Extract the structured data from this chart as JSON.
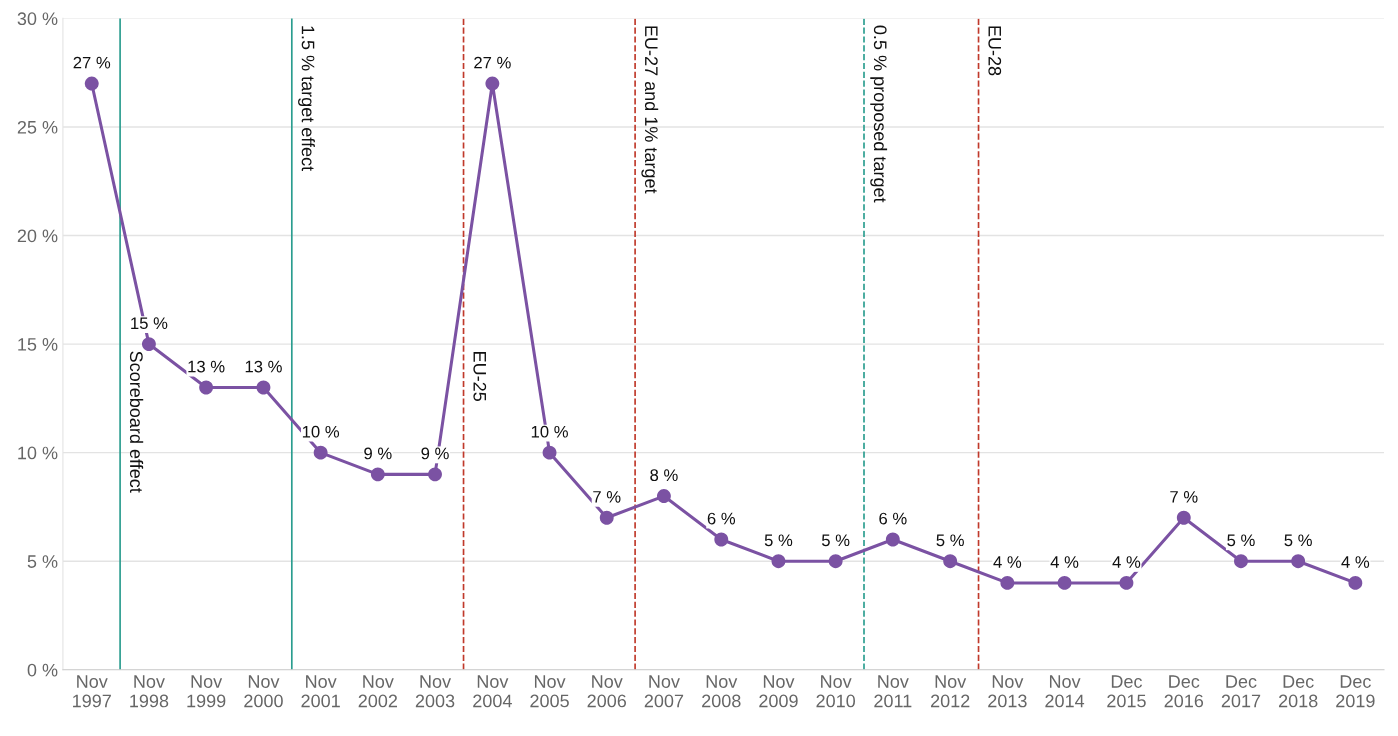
{
  "chart_data": {
    "type": "line",
    "x": [
      "1997-11",
      "1998-11",
      "1999-11",
      "2000-11",
      "2001-11",
      "2002-11",
      "2003-11",
      "2004-11",
      "2005-11",
      "2006-11",
      "2007-11",
      "2008-11",
      "2009-11",
      "2010-11",
      "2011-11",
      "2012-11",
      "2013-11",
      "2014-11",
      "2015-12",
      "2016-12",
      "2017-12",
      "2018-12",
      "2019-12"
    ],
    "xlim": [
      "1997-05",
      "2020-06"
    ],
    "xticks": [
      {
        "value": "1997-11",
        "label": "Nov\n1997"
      },
      {
        "value": "1998-11",
        "label": "Nov\n1998"
      },
      {
        "value": "1999-11",
        "label": "Nov\n1999"
      },
      {
        "value": "2000-11",
        "label": "Nov\n2000"
      },
      {
        "value": "2001-11",
        "label": "Nov\n2001"
      },
      {
        "value": "2002-11",
        "label": "Nov\n2002"
      },
      {
        "value": "2003-11",
        "label": "Nov\n2003"
      },
      {
        "value": "2004-11",
        "label": "Nov\n2004"
      },
      {
        "value": "2005-11",
        "label": "Nov\n2005"
      },
      {
        "value": "2006-11",
        "label": "Nov\n2006"
      },
      {
        "value": "2007-11",
        "label": "Nov\n2007"
      },
      {
        "value": "2008-11",
        "label": "Nov\n2008"
      },
      {
        "value": "2009-11",
        "label": "Nov\n2009"
      },
      {
        "value": "2010-11",
        "label": "Nov\n2010"
      },
      {
        "value": "2011-11",
        "label": "Nov\n2011"
      },
      {
        "value": "2012-11",
        "label": "Nov\n2012"
      },
      {
        "value": "2013-11",
        "label": "Nov\n2013"
      },
      {
        "value": "2014-11",
        "label": "Nov\n2014"
      },
      {
        "value": "2015-12",
        "label": "Dec\n2015"
      },
      {
        "value": "2016-12",
        "label": "Dec\n2016"
      },
      {
        "value": "2017-12",
        "label": "Dec\n2017"
      },
      {
        "value": "2018-12",
        "label": "Dec\n2018"
      },
      {
        "value": "2019-12",
        "label": "Dec\n2019"
      }
    ],
    "series": [
      {
        "color": "#7b52a3",
        "values": [
          27,
          15,
          13,
          13,
          10,
          9,
          9,
          27,
          10,
          7,
          8,
          6,
          5,
          5,
          6,
          5,
          4,
          4,
          4,
          7,
          5,
          5,
          4
        ],
        "value_labels": [
          "27 %",
          "15 %",
          "13 %",
          "13 %",
          "10 %",
          "9 %",
          "9 %",
          "27 %",
          "10 %",
          "7 %",
          "8 %",
          "6 %",
          "5 %",
          "5 %",
          "6 %",
          "5 %",
          "4 %",
          "4 %",
          "4 %",
          "7 %",
          "5 %",
          "5 %",
          "4 %"
        ]
      }
    ],
    "ylim": [
      0,
      30
    ],
    "yticks": [
      {
        "value": 0,
        "label": "0 %"
      },
      {
        "value": 5,
        "label": "5 %"
      },
      {
        "value": 10,
        "label": "10 %"
      },
      {
        "value": 15,
        "label": "15 %"
      },
      {
        "value": 20,
        "label": "20 %"
      },
      {
        "value": 25,
        "label": "25 %"
      },
      {
        "value": 30,
        "label": "30 %"
      }
    ],
    "grid": "y",
    "marker": "circle",
    "line_style": "solid",
    "ref_lines": [
      {
        "axis": "x",
        "value": "1998-05",
        "label": "Scoreboard effect",
        "color": "#2a9d8f",
        "line_style": "solid"
      },
      {
        "axis": "x",
        "value": "2001-05",
        "label": "1.5 % target effect",
        "color": "#2a9d8f",
        "line_style": "solid"
      },
      {
        "axis": "x",
        "value": "2004-05",
        "label": "EU-25",
        "color": "#c0392b",
        "line_style": "dashed"
      },
      {
        "axis": "x",
        "value": "2007-05",
        "label": "EU-27 and 1% target",
        "color": "#c0392b",
        "line_style": "dashed"
      },
      {
        "axis": "x",
        "value": "2011-05",
        "label": "0.5 % proposed target",
        "color": "#2a9d8f",
        "line_style": "dashed"
      },
      {
        "axis": "x",
        "value": "2013-05",
        "label": "EU-28",
        "color": "#c0392b",
        "line_style": "dashed"
      }
    ]
  }
}
